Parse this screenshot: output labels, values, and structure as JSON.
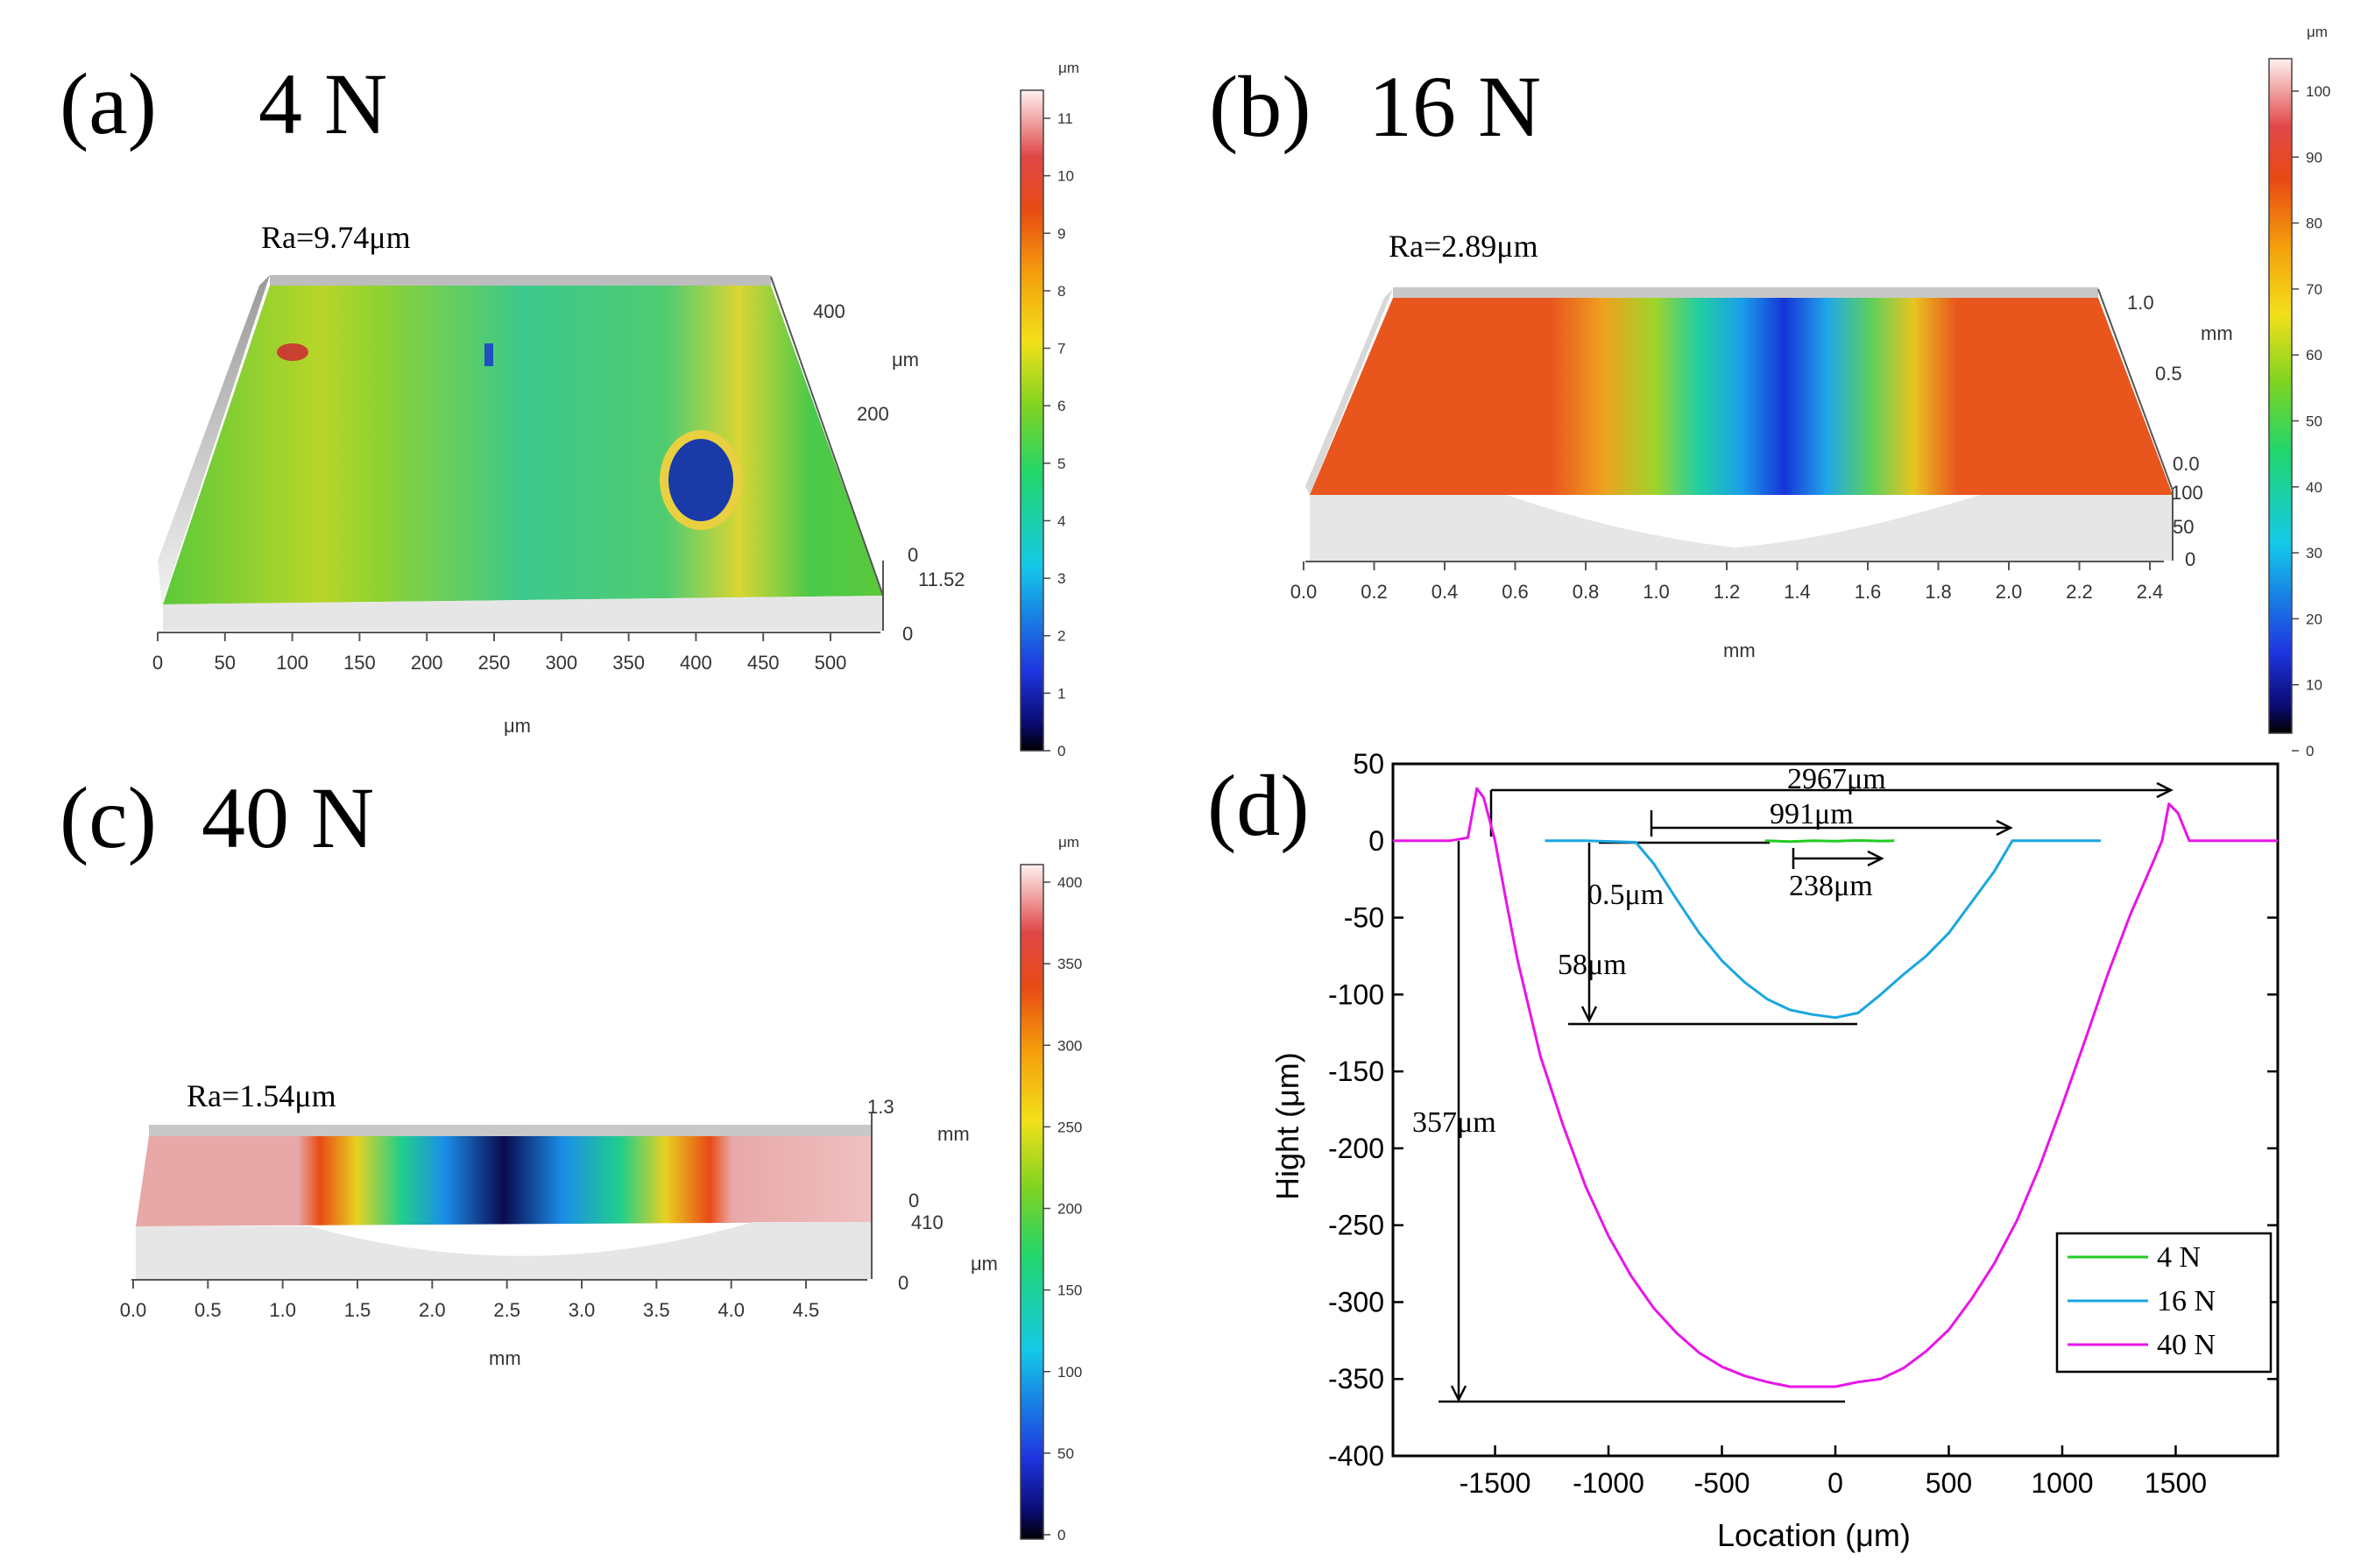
{
  "panel_a": {
    "label": "(a)",
    "load": "4 N",
    "ra": "Ra=9.74μm",
    "x_ticks": [
      "0",
      "50",
      "100",
      "150",
      "200",
      "250",
      "300",
      "350",
      "400",
      "450",
      "500"
    ],
    "x_unit": "μm",
    "y_ticks": [
      "400",
      "200",
      "0"
    ],
    "y_unit": "μm",
    "z_ticks": [
      "11.52",
      "0"
    ],
    "colorbar": {
      "unit": "μm",
      "ticks": [
        "11",
        "10",
        "9",
        "8",
        "7",
        "6",
        "5",
        "4",
        "3",
        "2",
        "1",
        "0"
      ]
    }
  },
  "panel_b": {
    "label": "(b)",
    "load": "16 N",
    "ra": "Ra=2.89μm",
    "x_ticks": [
      "0.0",
      "0.2",
      "0.4",
      "0.6",
      "0.8",
      "1.0",
      "1.2",
      "1.4",
      "1.6",
      "1.8",
      "2.0",
      "2.2",
      "2.4"
    ],
    "x_unit": "mm",
    "y_ticks": [
      "1.0",
      "0.5",
      "0.0"
    ],
    "y_unit": "mm",
    "z_ticks": [
      "100",
      "50",
      "0"
    ],
    "colorbar": {
      "unit": "μm",
      "ticks": [
        "100",
        "90",
        "80",
        "70",
        "60",
        "50",
        "40",
        "30",
        "20",
        "10",
        "0"
      ]
    }
  },
  "panel_c": {
    "label": "(c)",
    "load": "40 N",
    "ra": "Ra=1.54μm",
    "x_ticks": [
      "0.0",
      "0.5",
      "1.0",
      "1.5",
      "2.0",
      "2.5",
      "3.0",
      "3.5",
      "4.0",
      "4.5"
    ],
    "x_unit": "mm",
    "y_ticks": [
      "1.3",
      "0"
    ],
    "y_unit": "mm",
    "z_ticks": [
      "410",
      "0"
    ],
    "z_unit": "μm",
    "colorbar": {
      "unit": "μm",
      "ticks": [
        "400",
        "350",
        "300",
        "250",
        "200",
        "150",
        "100",
        "50",
        "0"
      ]
    }
  },
  "colors": {
    "c4N": "#22cc22",
    "c16N": "#1aa6e0",
    "c40N": "#e815e8"
  },
  "chart_data": {
    "type": "line",
    "panel_label": "(d)",
    "xlabel": "Location (μm)",
    "ylabel": "Hight (μm)",
    "xlim": [
      -1950,
      1950
    ],
    "ylim": [
      -400,
      50
    ],
    "x_ticks": [
      -1500,
      -1000,
      -500,
      0,
      500,
      1000,
      1500
    ],
    "y_ticks": [
      50,
      0,
      -50,
      -100,
      -150,
      -200,
      -250,
      -300,
      -350,
      -400
    ],
    "legend": {
      "position": "bottom-right",
      "entries": [
        "4 N",
        "16 N",
        "40 N"
      ]
    },
    "series": [
      {
        "name": "4 N",
        "x": [
          -310,
          -200,
          -100,
          0,
          100,
          200,
          260
        ],
        "y": [
          0,
          -0.5,
          0,
          -0.3,
          0.2,
          -0.2,
          0
        ]
      },
      {
        "name": "16 N",
        "x": [
          -1280,
          -1100,
          -880,
          -800,
          -700,
          -600,
          -500,
          -400,
          -300,
          -200,
          -100,
          0,
          100,
          200,
          300,
          400,
          500,
          600,
          700,
          780,
          900,
          1000,
          1170
        ],
        "y": [
          0,
          0,
          -1,
          -15,
          -38,
          -60,
          -78,
          -92,
          -103,
          -110,
          -113,
          -115,
          -112,
          -100,
          -87,
          -75,
          -60,
          -40,
          -20,
          0,
          0,
          0,
          0
        ]
      },
      {
        "name": "40 N",
        "x": [
          -1950,
          -1700,
          -1620,
          -1580,
          -1550,
          -1500,
          -1450,
          -1400,
          -1300,
          -1200,
          -1100,
          -1000,
          -900,
          -800,
          -700,
          -600,
          -500,
          -400,
          -300,
          -200,
          -100,
          0,
          100,
          200,
          300,
          400,
          500,
          600,
          700,
          800,
          900,
          1000,
          1100,
          1200,
          1300,
          1400,
          1440,
          1470,
          1510,
          1560,
          1650,
          1950
        ],
        "y": [
          0,
          0,
          2,
          34,
          28,
          0,
          -40,
          -78,
          -140,
          -185,
          -225,
          -257,
          -283,
          -304,
          -320,
          -333,
          -342,
          -348,
          -352,
          -355,
          -355,
          -355,
          -352,
          -350,
          -343,
          -332,
          -318,
          -298,
          -275,
          -247,
          -212,
          -172,
          -130,
          -87,
          -48,
          -14,
          0,
          24,
          18,
          0,
          0,
          0
        ]
      }
    ],
    "annotations": [
      "2967μm",
      "991μm",
      "238μm",
      "0.5μm",
      "58μm",
      "357μm"
    ]
  }
}
